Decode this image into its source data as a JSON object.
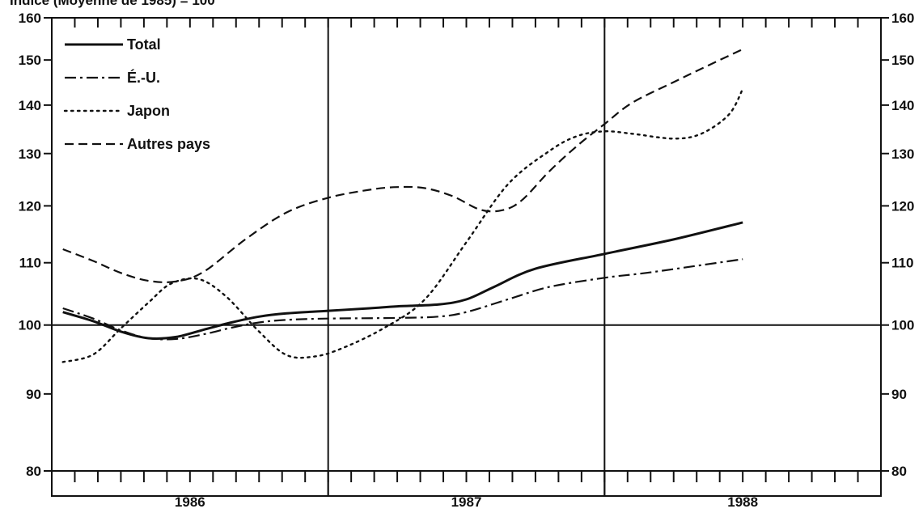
{
  "chart_data": {
    "type": "line",
    "title": "Indice (Moyenne de 1985) = 100",
    "y_scale": "log",
    "ylim": [
      80,
      160
    ],
    "y_ticks": [
      80,
      90,
      100,
      110,
      120,
      130,
      140,
      150,
      160
    ],
    "x_range": [
      1985.75,
      1988.75
    ],
    "x_tick_labels": [
      {
        "label": "1986",
        "x": 1986.25
      },
      {
        "label": "1987",
        "x": 1987.25
      },
      {
        "label": "1988",
        "x": 1988.25
      }
    ],
    "year_dividers": [
      1986.75,
      1987.75
    ],
    "reference_line": 100,
    "legend_position": "top-left",
    "series": [
      {
        "name": "Total",
        "style": "solid",
        "points": [
          [
            1985.79,
            102.0
          ],
          [
            1985.9,
            100.6
          ],
          [
            1986.0,
            99.0
          ],
          [
            1986.1,
            98.0
          ],
          [
            1986.2,
            98.2
          ],
          [
            1986.3,
            99.3
          ],
          [
            1986.4,
            100.4
          ],
          [
            1986.5,
            101.3
          ],
          [
            1986.6,
            101.8
          ],
          [
            1986.75,
            102.2
          ],
          [
            1986.9,
            102.6
          ],
          [
            1987.0,
            102.9
          ],
          [
            1987.15,
            103.2
          ],
          [
            1987.25,
            104.0
          ],
          [
            1987.35,
            106.0
          ],
          [
            1987.5,
            109.0
          ],
          [
            1987.75,
            111.5
          ],
          [
            1988.0,
            114.0
          ],
          [
            1988.25,
            117.0
          ]
        ]
      },
      {
        "name": "É.-U.",
        "style": "dashdot",
        "points": [
          [
            1985.79,
            102.6
          ],
          [
            1985.9,
            101.0
          ],
          [
            1986.0,
            99.2
          ],
          [
            1986.1,
            98.0
          ],
          [
            1986.2,
            97.9
          ],
          [
            1986.3,
            98.6
          ],
          [
            1986.4,
            99.6
          ],
          [
            1986.5,
            100.4
          ],
          [
            1986.6,
            100.8
          ],
          [
            1986.75,
            101.0
          ],
          [
            1987.0,
            101.1
          ],
          [
            1987.15,
            101.3
          ],
          [
            1987.25,
            102.0
          ],
          [
            1987.4,
            104.0
          ],
          [
            1987.55,
            106.0
          ],
          [
            1987.75,
            107.5
          ],
          [
            1987.9,
            108.3
          ],
          [
            1988.1,
            109.6
          ],
          [
            1988.25,
            110.6
          ]
        ]
      },
      {
        "name": "Japon",
        "style": "dotted",
        "points": [
          [
            1985.79,
            94.5
          ],
          [
            1985.9,
            95.6
          ],
          [
            1986.0,
            99.5
          ],
          [
            1986.1,
            103.5
          ],
          [
            1986.18,
            106.5
          ],
          [
            1986.28,
            107.3
          ],
          [
            1986.38,
            104.5
          ],
          [
            1986.5,
            99.0
          ],
          [
            1986.6,
            95.5
          ],
          [
            1986.7,
            95.3
          ],
          [
            1986.8,
            96.5
          ],
          [
            1986.95,
            99.5
          ],
          [
            1987.1,
            104.0
          ],
          [
            1987.25,
            113.5
          ],
          [
            1987.4,
            124.0
          ],
          [
            1987.55,
            130.5
          ],
          [
            1987.65,
            133.5
          ],
          [
            1987.75,
            134.5
          ],
          [
            1987.85,
            134.0
          ],
          [
            1988.0,
            133.0
          ],
          [
            1988.1,
            134.0
          ],
          [
            1988.2,
            138.0
          ],
          [
            1988.25,
            143.5
          ]
        ]
      },
      {
        "name": "Autres pays",
        "style": "dashed",
        "points": [
          [
            1985.79,
            112.3
          ],
          [
            1985.9,
            110.3
          ],
          [
            1986.0,
            108.3
          ],
          [
            1986.1,
            107.0
          ],
          [
            1986.2,
            106.9
          ],
          [
            1986.3,
            108.5
          ],
          [
            1986.45,
            114.0
          ],
          [
            1986.6,
            118.8
          ],
          [
            1986.75,
            121.5
          ],
          [
            1986.9,
            123.0
          ],
          [
            1987.0,
            123.5
          ],
          [
            1987.1,
            123.3
          ],
          [
            1987.2,
            121.8
          ],
          [
            1987.3,
            119.3
          ],
          [
            1987.38,
            119.2
          ],
          [
            1987.45,
            121.0
          ],
          [
            1987.55,
            126.5
          ],
          [
            1987.65,
            131.5
          ],
          [
            1987.75,
            136.0
          ],
          [
            1987.85,
            140.5
          ],
          [
            1988.0,
            145.0
          ],
          [
            1988.1,
            148.0
          ],
          [
            1988.25,
            152.5
          ]
        ]
      }
    ]
  }
}
